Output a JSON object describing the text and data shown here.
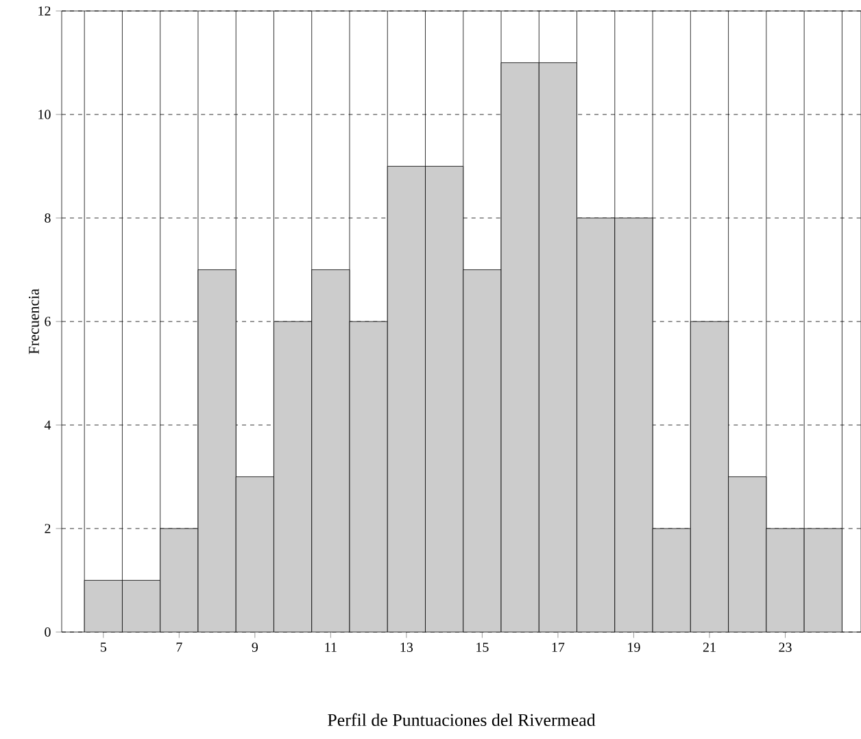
{
  "chart_data": {
    "type": "histogram",
    "xlabel": "Perfil de Puntuaciones del Rivermead",
    "ylabel": "Frecuencia",
    "bins": [
      4.5,
      5.5,
      6.5,
      7.5,
      8.5,
      9.5,
      10.5,
      11.5,
      12.5,
      13.5,
      14.5,
      15.5,
      16.5,
      17.5,
      18.5,
      19.5,
      20.5,
      21.5,
      22.5,
      23.5,
      24.5
    ],
    "values": [
      1,
      1,
      2,
      7,
      3,
      6,
      7,
      6,
      9,
      9,
      7,
      11,
      11,
      8,
      8,
      2,
      6,
      3,
      2,
      2
    ],
    "color": "#cccccc",
    "xlim": [
      3.9,
      25
    ],
    "xticks": [
      5,
      7,
      9,
      11,
      13,
      15,
      17,
      19,
      21,
      23
    ],
    "ylim": [
      0,
      12
    ],
    "yticks": [
      0,
      2,
      4,
      6,
      8,
      10,
      12
    ],
    "grid": true
  }
}
